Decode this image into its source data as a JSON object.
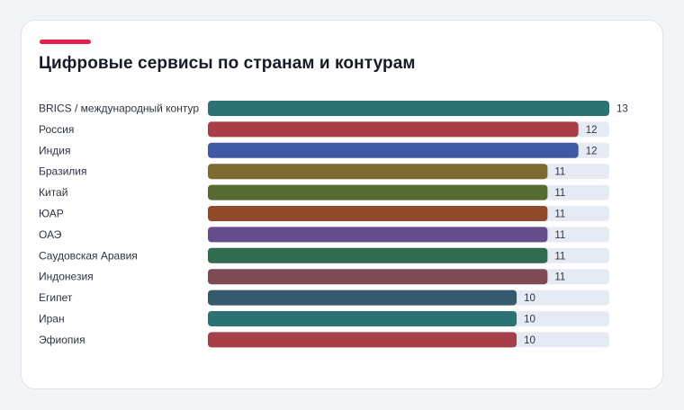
{
  "title": "Цифровые сервисы по странам и контурам",
  "accent_color": "#e0234e",
  "track_color": "#e6ebf3",
  "chart_data": {
    "type": "bar",
    "orientation": "horizontal",
    "title": "Цифровые сервисы по странам и контурам",
    "xlabel": "",
    "ylabel": "",
    "xlim": [
      0,
      13
    ],
    "grid": false,
    "categories": [
      "BRICS / международный контур",
      "Россия",
      "Индия",
      "Бразилия",
      "Китай",
      "ЮАР",
      "ОАЭ",
      "Саудовская Аравия",
      "Индонезия",
      "Египет",
      "Иран",
      "Эфиопия"
    ],
    "values": [
      13,
      12,
      12,
      11,
      11,
      11,
      11,
      11,
      11,
      10,
      10,
      10
    ],
    "colors": [
      "#2d7272",
      "#a63f48",
      "#3f59a5",
      "#7d6a30",
      "#566a32",
      "#8f4a2b",
      "#644d8c",
      "#2e6b4f",
      "#7e4a56",
      "#365a6c",
      "#2d7272",
      "#a63f48"
    ]
  }
}
